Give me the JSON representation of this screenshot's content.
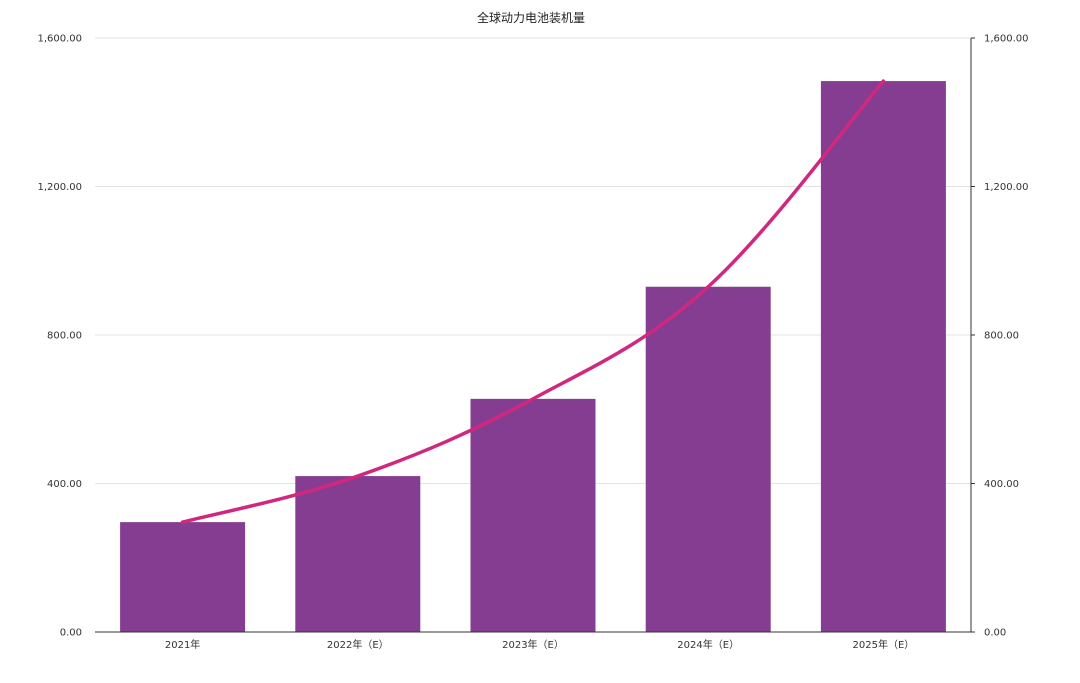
{
  "chart_data": {
    "type": "bar",
    "title": "全球动力电池装机量",
    "categories": [
      "2021年",
      "2022年（E）",
      "2023年（E）",
      "2024年（E）",
      "2025年（E）"
    ],
    "series": [
      {
        "type": "bar",
        "values": [
          296,
          420,
          628,
          930,
          1484
        ]
      },
      {
        "type": "line",
        "values": [
          296,
          420,
          628,
          930,
          1484
        ]
      }
    ],
    "ylim": [
      0,
      1600
    ],
    "yticks": [
      "0.00",
      "400.00",
      "800.00",
      "1,200.00",
      "1,600.00"
    ],
    "y2ticks": [
      "0.00",
      "400.00",
      "800.00",
      "1,200.00",
      "1,600.00"
    ],
    "xlabel": "",
    "ylabel": "",
    "grid": true,
    "legend": "none",
    "colors": {
      "bar": "#853d91",
      "line": "#d0287f"
    }
  }
}
